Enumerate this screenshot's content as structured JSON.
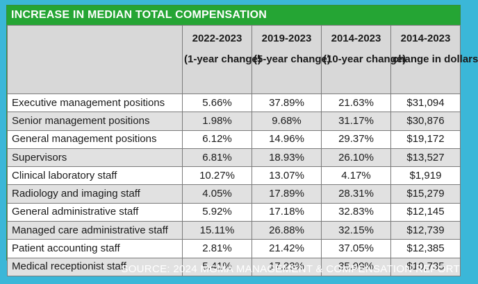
{
  "colors": {
    "background": "#3bb7d8",
    "title_bar": "#25a534",
    "header_bg": "#d8d8d8",
    "alt_row_bg": "#e1e1e1"
  },
  "chart_data": {
    "type": "table",
    "title": "INCREASE IN MEDIAN TOTAL COMPENSATION",
    "columns": [
      {
        "top": "",
        "sub": ""
      },
      {
        "top": "2022-2023",
        "sub": "(1-year change)"
      },
      {
        "top": "2019-2023",
        "sub": "(5-year change)"
      },
      {
        "top": "2014-2023",
        "sub": "(10-year change)"
      },
      {
        "top": "2014-2023",
        "sub": "change in dollars"
      }
    ],
    "rows": [
      {
        "label": "Executive management positions",
        "values": [
          "5.66%",
          "37.89%",
          "21.63%",
          "$31,094"
        ]
      },
      {
        "label": "Senior management positions",
        "values": [
          "1.98%",
          "9.68%",
          "31.17%",
          "$30,876"
        ]
      },
      {
        "label": "General management positions",
        "values": [
          "6.12%",
          "14.96%",
          "29.37%",
          "$19,172"
        ]
      },
      {
        "label": "Supervisors",
        "values": [
          "6.81%",
          "18.93%",
          "26.10%",
          "$13,527"
        ]
      },
      {
        "label": "Clinical laboratory staff",
        "values": [
          "10.27%",
          "13.07%",
          "4.17%",
          "$1,919"
        ]
      },
      {
        "label": "Radiology and imaging staff",
        "values": [
          "4.05%",
          "17.89%",
          "28.31%",
          "$15,279"
        ]
      },
      {
        "label": "General administrative staff",
        "values": [
          "5.92%",
          "17.18%",
          "32.83%",
          "$12,145"
        ]
      },
      {
        "label": "Managed care administrative staff",
        "values": [
          "15.11%",
          "26.88%",
          "32.15%",
          "$12,739"
        ]
      },
      {
        "label": "Patient accounting staff",
        "values": [
          "2.81%",
          "21.42%",
          "37.05%",
          "$12,385"
        ]
      },
      {
        "label": "Medical receptionist staff",
        "values": [
          "5.41%",
          "17.23%",
          "35.99%",
          "$10,735"
        ]
      }
    ],
    "source": "SOURCE: 2024 MGMA MANAGEMENT & COMPENSATION REPORT"
  }
}
